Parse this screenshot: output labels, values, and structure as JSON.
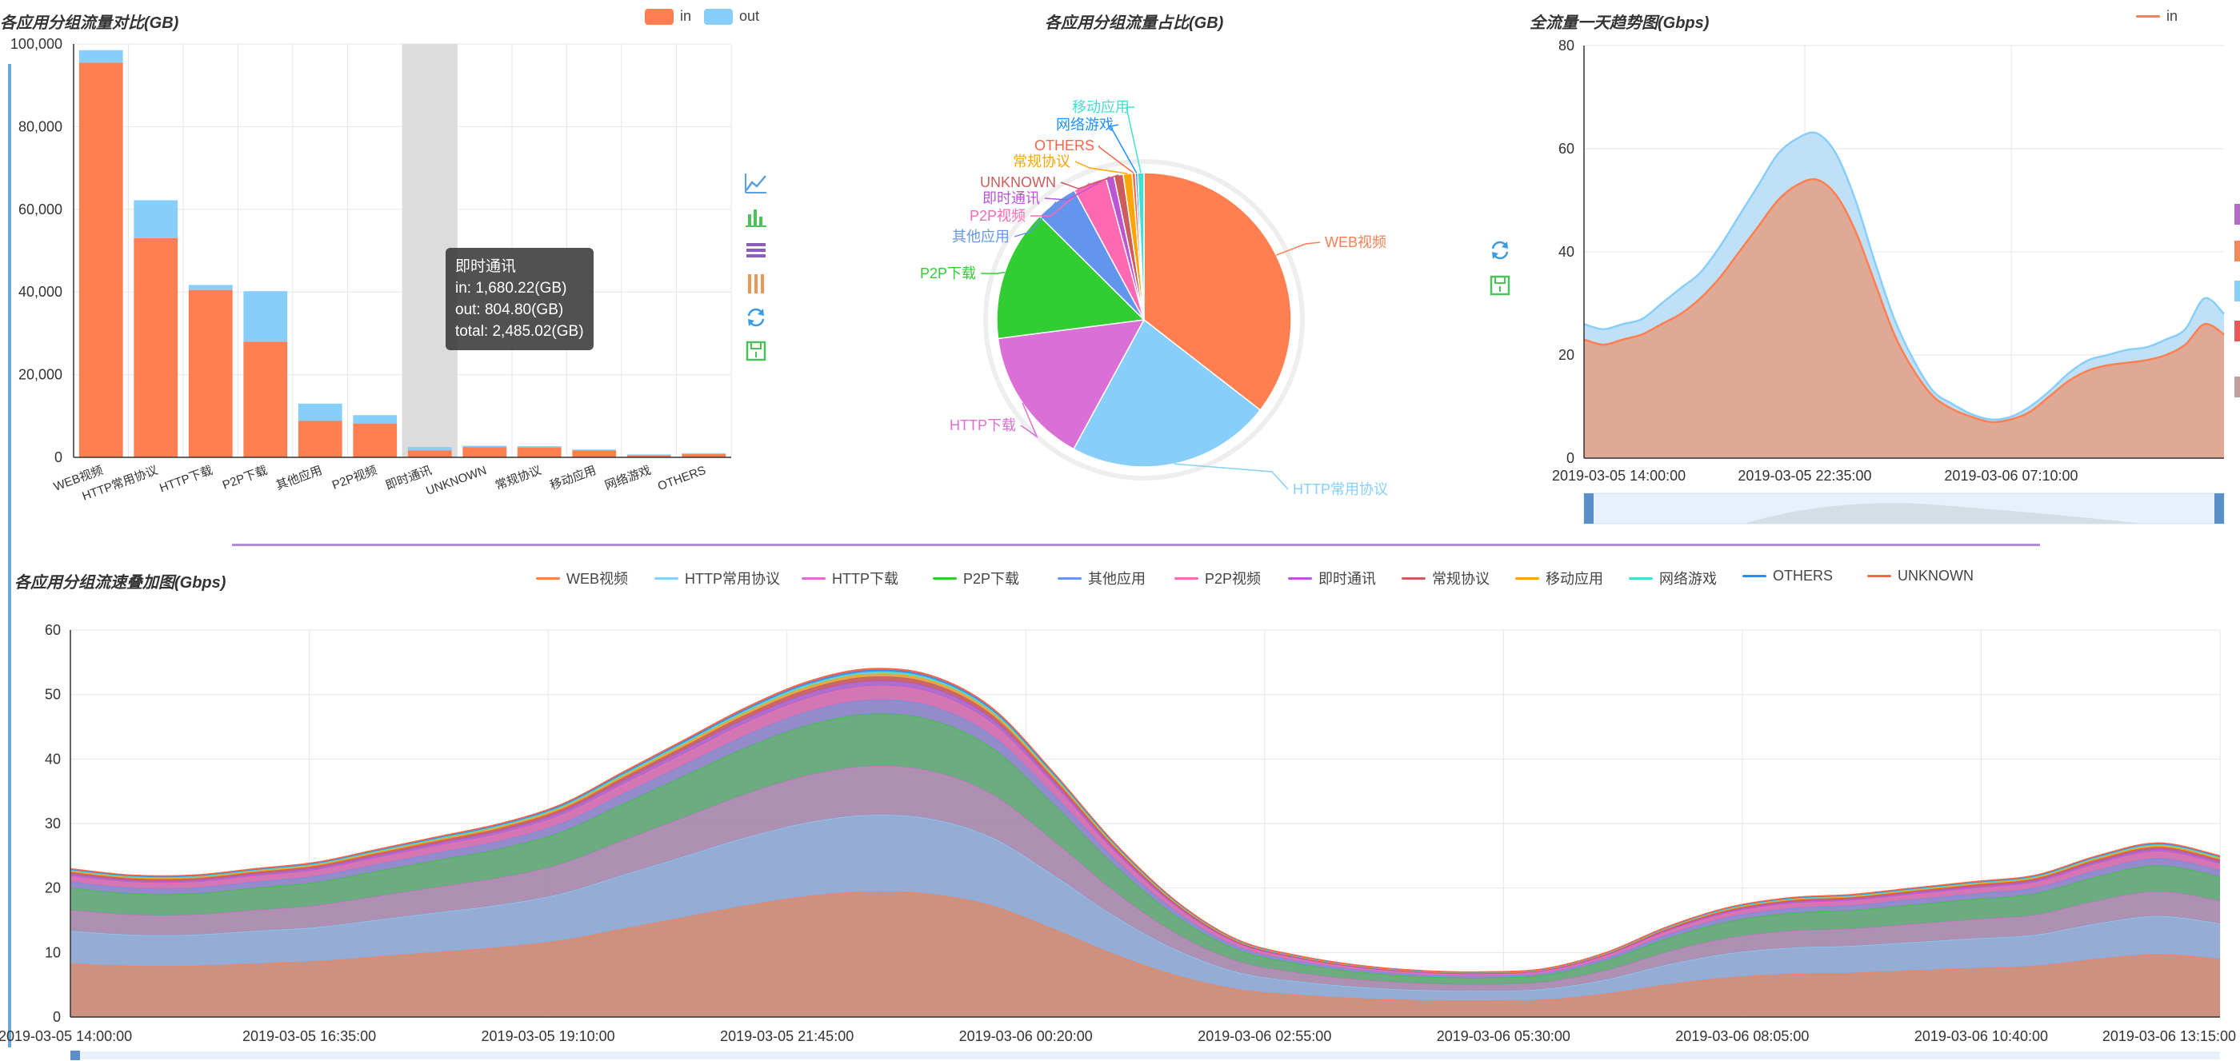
{
  "colors": {
    "in": "#ff7f50",
    "out": "#87cefa",
    "shadow": "#dcdcdc",
    "grid": "#e6e6e6",
    "axis": "#333333"
  },
  "toolbox": {
    "icons": [
      "line-chart-icon",
      "bar-chart-icon",
      "stack-icon",
      "tiled-icon",
      "restore-icon",
      "save-icon"
    ]
  },
  "bar_panel": {
    "title": "各应用分组流量对比(GB)",
    "legend": [
      "in",
      "out"
    ],
    "tooltip": {
      "title": "即时通讯",
      "in": "in: 1,680.22(GB)",
      "out": "out: 804.80(GB)",
      "total": "total: 2,485.02(GB)"
    }
  },
  "pie_panel": {
    "title": "各应用分组流量占比(GB)"
  },
  "trend_panel": {
    "title": "全流量一天趋势图(Gbps)",
    "legend": [
      "in"
    ]
  },
  "stack_panel": {
    "title": "各应用分组流速叠加图(Gbps)",
    "legend": [
      "WEB视频",
      "HTTP常用协议",
      "HTTP下载",
      "P2P下载",
      "其他应用",
      "P2P视频",
      "即时通讯",
      "常规协议",
      "移动应用",
      "网络游戏",
      "OTHERS",
      "UNKNOWN"
    ]
  },
  "chart_data": [
    {
      "type": "bar",
      "title": "各应用分组流量对比(GB)",
      "categories": [
        "WEB视频",
        "HTTP常用协议",
        "HTTP下载",
        "P2P下载",
        "其他应用",
        "P2P视频",
        "即时通讯",
        "UNKNOWN",
        "常规协议",
        "移动应用",
        "网络游戏",
        "OTHERS"
      ],
      "series": [
        {
          "name": "in",
          "values": [
            95500,
            53000,
            40500,
            28000,
            8800,
            8200,
            1680.22,
            2500,
            2400,
            1700,
            500,
            800
          ]
        },
        {
          "name": "out",
          "values": [
            3000,
            9200,
            1200,
            12200,
            4200,
            2000,
            804.8,
            300,
            300,
            200,
            200,
            200
          ]
        }
      ],
      "stacked": true,
      "highlighted_category": "即时通讯",
      "ylim": [
        0,
        100000
      ],
      "yticks": [
        "0",
        "20,000",
        "40,000",
        "60,000",
        "80,000",
        "100,000"
      ],
      "legend_position": "top-right",
      "grid": true
    },
    {
      "type": "pie",
      "title": "各应用分组流量占比(GB)",
      "labels": [
        "WEB视频",
        "HTTP常用协议",
        "HTTP下载",
        "P2P下载",
        "其他应用",
        "P2P视频",
        "即时通讯",
        "UNKNOWN",
        "常规协议",
        "OTHERS",
        "网络游戏",
        "移动应用"
      ],
      "values": [
        98500,
        62200,
        41700,
        40200,
        13000,
        10200,
        2485.02,
        2800,
        2700,
        1000,
        700,
        1900
      ],
      "colors": [
        "#ff7f50",
        "#87cefa",
        "#da70d6",
        "#32cd32",
        "#6495ed",
        "#ff69b4",
        "#ba55d3",
        "#cd5c5c",
        "#ffa500",
        "#ff6347",
        "#1e90ff",
        "#40e0d0"
      ]
    },
    {
      "type": "area",
      "title": "全流量一天趋势图(Gbps)",
      "x_labels": [
        "2019-03-05 14:00:00",
        "2019-03-05 22:35:00",
        "2019-03-06 07:10:00"
      ],
      "x_range": [
        "2019-03-05 14:00",
        "2019-03-06 14:00"
      ],
      "ylim": [
        0,
        80
      ],
      "yticks": [
        "0",
        "20",
        "40",
        "60",
        "80"
      ],
      "series": [
        {
          "name": "in",
          "values": [
            23,
            22,
            23,
            24,
            26,
            28,
            31,
            35,
            40,
            45,
            50,
            53,
            54,
            51,
            44,
            34,
            24,
            17,
            12,
            9.5,
            8,
            7,
            7.5,
            9,
            12,
            15,
            17,
            18,
            18.5,
            19,
            20,
            22,
            26,
            24
          ]
        },
        {
          "name": "out",
          "values": [
            26,
            25,
            26,
            27,
            30,
            33,
            36,
            41,
            47,
            53,
            59,
            62,
            63,
            59,
            50,
            38,
            27,
            19,
            13,
            10.5,
            8.5,
            7.5,
            8,
            10,
            13,
            16.5,
            19,
            20,
            21,
            21.5,
            23,
            25,
            31,
            28
          ]
        }
      ],
      "grid": true
    },
    {
      "type": "area",
      "title": "各应用分组流速叠加图(Gbps)",
      "stacked": true,
      "x_labels": [
        "2019-03-05 14:00:00",
        "2019-03-05 16:35:00",
        "2019-03-05 19:10:00",
        "2019-03-05 21:45:00",
        "2019-03-06 00:20:00",
        "2019-03-06 02:55:00",
        "2019-03-06 05:30:00",
        "2019-03-06 08:05:00",
        "2019-03-06 10:40:00",
        "2019-03-06 13:15:00"
      ],
      "ylim": [
        0,
        60
      ],
      "yticks": [
        "0",
        "10",
        "20",
        "30",
        "40",
        "50",
        "60"
      ],
      "total": [
        23,
        22,
        22,
        23,
        24,
        26,
        28,
        30,
        33,
        38,
        43,
        48,
        52,
        54,
        53,
        48,
        38,
        27,
        18,
        12,
        9.5,
        8,
        7.2,
        7,
        7.5,
        10,
        14,
        17,
        18.5,
        19,
        20,
        21,
        22,
        25,
        27,
        25
      ],
      "series": [
        {
          "name": "WEB视频",
          "share": 0.36
        },
        {
          "name": "HTTP常用协议",
          "share": 0.22
        },
        {
          "name": "HTTP下载",
          "share": 0.14
        },
        {
          "name": "P2P下载",
          "share": 0.15
        },
        {
          "name": "其他应用",
          "share": 0.04
        },
        {
          "name": "P2P视频",
          "share": 0.04
        },
        {
          "name": "即时通讯",
          "share": 0.015
        },
        {
          "name": "常规协议",
          "share": 0.012
        },
        {
          "name": "移动应用",
          "share": 0.008
        },
        {
          "name": "网络游戏",
          "share": 0.006
        },
        {
          "name": "OTHERS",
          "share": 0.005
        },
        {
          "name": "UNKNOWN",
          "share": 0.004
        }
      ],
      "series_colors": [
        "#c98b78",
        "#8fa8d2",
        "#a98aae",
        "#65a77a",
        "#8e86c7",
        "#d16fb0",
        "#a867c8",
        "#c8605e",
        "#e3a24a",
        "#6bd1c6",
        "#4f8de0",
        "#e86a52"
      ],
      "legend_colors": [
        "#ff7f50",
        "#87cefa",
        "#da70d6",
        "#32cd32",
        "#6495ed",
        "#ff69b4",
        "#ba55d3",
        "#cd5c5c",
        "#ffa500",
        "#40e0d0",
        "#1e90ff",
        "#ff6347"
      ],
      "grid": true,
      "legend_position": "top-center"
    }
  ]
}
